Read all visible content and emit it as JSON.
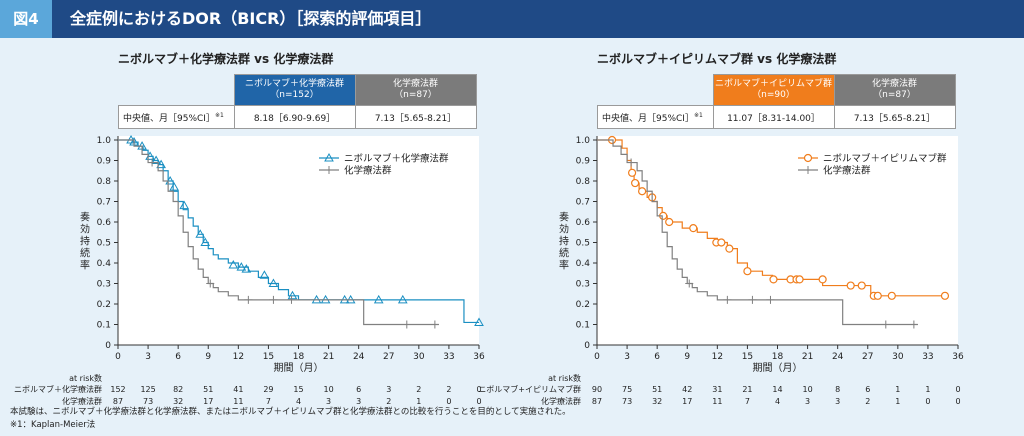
{
  "header": {
    "badge": "図4",
    "title": "全症例におけるDOR（BICR）［探索的評価項目］"
  },
  "colors": {
    "header_bg": "#1f4a86",
    "badge_bg": "#5ba7da",
    "arm_blue": "#1a8fc2",
    "arm_orange": "#f07d1c",
    "control_gray": "#808080",
    "header_gray": "#7b7b7b",
    "header_blue": "#2065a8"
  },
  "panels": [
    {
      "title": "ニボルマブ＋化学療法群 vs 化学療法群",
      "table": {
        "row_label": "中央値、月［95%CI］",
        "row_note": "※1",
        "arm_header": [
          "ニボルマブ＋化学療法群",
          "（n=152）"
        ],
        "control_header": [
          "化学療法群",
          "（n=87）"
        ],
        "arm_value": "8.18［6.90-9.69］",
        "control_value": "7.13［5.65-8.21］"
      },
      "chart_data": {
        "type": "line",
        "subtype": "kaplan-meier",
        "ylabel": "奏効持続率",
        "xlabel": "期間（月）",
        "x_ticks": [
          "0",
          "3",
          "6",
          "9",
          "12",
          "15",
          "18",
          "21",
          "24",
          "27",
          "30",
          "33",
          "36"
        ],
        "y_ticks": [
          "0",
          "0.1",
          "0.2",
          "0.3",
          "0.4",
          "0.5",
          "0.6",
          "0.7",
          "0.8",
          "0.9",
          "1.0"
        ],
        "xlim": [
          0,
          36
        ],
        "ylim": [
          0,
          1
        ],
        "legend_position": "top-right",
        "series": [
          {
            "name": "ニボルマブ＋化学療法群",
            "marker": "triangle",
            "color": "#1a8fc2",
            "steps": [
              [
                0,
                1.0
              ],
              [
                1.5,
                0.99
              ],
              [
                2.0,
                0.97
              ],
              [
                2.5,
                0.95
              ],
              [
                3.0,
                0.92
              ],
              [
                3.5,
                0.9
              ],
              [
                4.0,
                0.88
              ],
              [
                4.5,
                0.85
              ],
              [
                5.0,
                0.8
              ],
              [
                5.5,
                0.75
              ],
              [
                6.0,
                0.7
              ],
              [
                6.5,
                0.66
              ],
              [
                7.0,
                0.62
              ],
              [
                7.5,
                0.58
              ],
              [
                8.0,
                0.54
              ],
              [
                8.5,
                0.5
              ],
              [
                9.0,
                0.47
              ],
              [
                9.5,
                0.44
              ],
              [
                10.0,
                0.42
              ],
              [
                11.0,
                0.4
              ],
              [
                12.0,
                0.38
              ],
              [
                13.0,
                0.36
              ],
              [
                14.0,
                0.33
              ],
              [
                15.0,
                0.3
              ],
              [
                16.0,
                0.27
              ],
              [
                17.0,
                0.24
              ],
              [
                18.0,
                0.22
              ],
              [
                34.5,
                0.22
              ],
              [
                34.5,
                0.11
              ],
              [
                36,
                0.11
              ]
            ],
            "censors": [
              [
                1.3,
                1.0
              ],
              [
                1.6,
                0.99
              ],
              [
                2.4,
                0.97
              ],
              [
                3.2,
                0.92
              ],
              [
                3.8,
                0.9
              ],
              [
                4.3,
                0.88
              ],
              [
                5.2,
                0.8
              ],
              [
                5.6,
                0.77
              ],
              [
                6.6,
                0.68
              ],
              [
                8.2,
                0.54
              ],
              [
                8.7,
                0.5
              ],
              [
                11.5,
                0.39
              ],
              [
                12.3,
                0.38
              ],
              [
                12.8,
                0.37
              ],
              [
                14.6,
                0.34
              ],
              [
                15.5,
                0.3
              ],
              [
                17.4,
                0.24
              ],
              [
                19.8,
                0.22
              ],
              [
                20.7,
                0.22
              ],
              [
                22.6,
                0.22
              ],
              [
                23.2,
                0.22
              ],
              [
                26.0,
                0.22
              ],
              [
                28.4,
                0.22
              ],
              [
                36.0,
                0.11
              ]
            ]
          },
          {
            "name": "化学療法群",
            "marker": "plus",
            "color": "#808080",
            "steps": [
              [
                0,
                1.0
              ],
              [
                1.6,
                0.97
              ],
              [
                2.4,
                0.93
              ],
              [
                3.0,
                0.89
              ],
              [
                4.0,
                0.85
              ],
              [
                4.5,
                0.8
              ],
              [
                5.0,
                0.75
              ],
              [
                5.5,
                0.7
              ],
              [
                6.0,
                0.63
              ],
              [
                6.5,
                0.55
              ],
              [
                7.0,
                0.48
              ],
              [
                7.5,
                0.42
              ],
              [
                8.0,
                0.37
              ],
              [
                8.5,
                0.33
              ],
              [
                9.0,
                0.3
              ],
              [
                9.5,
                0.28
              ],
              [
                10.0,
                0.26
              ],
              [
                11.0,
                0.24
              ],
              [
                12.0,
                0.22
              ],
              [
                24.5,
                0.22
              ],
              [
                24.5,
                0.1
              ],
              [
                32,
                0.1
              ]
            ],
            "censors": [
              [
                3.4,
                0.89
              ],
              [
                9.2,
                0.3
              ],
              [
                13.0,
                0.22
              ],
              [
                15.5,
                0.22
              ],
              [
                17.3,
                0.22
              ],
              [
                28.8,
                0.1
              ],
              [
                31.6,
                0.1
              ]
            ]
          }
        ],
        "at_risk": {
          "label": "at risk数",
          "x": [
            0,
            3,
            6,
            9,
            12,
            15,
            18,
            21,
            24,
            27,
            30,
            33,
            36
          ],
          "rows": [
            {
              "name": "ニボルマブ＋化学療法群",
              "values": [
                "152",
                "125",
                "82",
                "51",
                "41",
                "29",
                "15",
                "10",
                "6",
                "3",
                "2",
                "2",
                "0"
              ]
            },
            {
              "name": "化学療法群",
              "values": [
                "87",
                "73",
                "32",
                "17",
                "11",
                "7",
                "4",
                "3",
                "3",
                "2",
                "1",
                "0",
                "0"
              ]
            }
          ]
        }
      }
    },
    {
      "title": "ニボルマブ＋イピリムマブ群 vs 化学療法群",
      "table": {
        "row_label": "中央値、月［95%CI］",
        "row_note": "※1",
        "arm_header": [
          "ニボルマブ＋イピリムマブ群",
          "（n=90）"
        ],
        "control_header": [
          "化学療法群",
          "（n=87）"
        ],
        "arm_value": "11.07［8.31-14.00］",
        "control_value": "7.13［5.65-8.21］"
      },
      "chart_data": {
        "type": "line",
        "subtype": "kaplan-meier",
        "ylabel": "奏効持続率",
        "xlabel": "期間（月）",
        "x_ticks": [
          "0",
          "3",
          "6",
          "9",
          "12",
          "15",
          "18",
          "21",
          "24",
          "27",
          "30",
          "33",
          "36"
        ],
        "y_ticks": [
          "0",
          "0.1",
          "0.2",
          "0.3",
          "0.4",
          "0.5",
          "0.6",
          "0.7",
          "0.8",
          "0.9",
          "1.0"
        ],
        "xlim": [
          0,
          36
        ],
        "ylim": [
          0,
          1
        ],
        "legend_position": "top-right",
        "series": [
          {
            "name": "ニボルマブ＋イピリムマブ群",
            "marker": "circle",
            "color": "#f07d1c",
            "steps": [
              [
                0,
                1.0
              ],
              [
                2.5,
                0.96
              ],
              [
                3.0,
                0.9
              ],
              [
                3.4,
                0.84
              ],
              [
                3.7,
                0.79
              ],
              [
                4.2,
                0.75
              ],
              [
                5.0,
                0.72
              ],
              [
                5.5,
                0.7
              ],
              [
                6.0,
                0.67
              ],
              [
                6.5,
                0.63
              ],
              [
                7.0,
                0.6
              ],
              [
                8.5,
                0.57
              ],
              [
                10.0,
                0.55
              ],
              [
                11.0,
                0.52
              ],
              [
                12.0,
                0.5
              ],
              [
                13.0,
                0.47
              ],
              [
                14.0,
                0.4
              ],
              [
                15.0,
                0.36
              ],
              [
                16.5,
                0.34
              ],
              [
                17.5,
                0.32
              ],
              [
                21.0,
                0.32
              ],
              [
                22.5,
                0.29
              ],
              [
                27.0,
                0.29
              ],
              [
                27.3,
                0.24
              ],
              [
                35,
                0.24
              ]
            ],
            "censors": [
              [
                1.5,
                1.0
              ],
              [
                3.5,
                0.84
              ],
              [
                3.8,
                0.79
              ],
              [
                4.5,
                0.75
              ],
              [
                5.5,
                0.72
              ],
              [
                6.6,
                0.63
              ],
              [
                7.2,
                0.6
              ],
              [
                9.6,
                0.57
              ],
              [
                11.9,
                0.5
              ],
              [
                12.4,
                0.5
              ],
              [
                13.2,
                0.47
              ],
              [
                15.0,
                0.36
              ],
              [
                17.6,
                0.32
              ],
              [
                19.3,
                0.32
              ],
              [
                19.9,
                0.32
              ],
              [
                20.2,
                0.32
              ],
              [
                22.5,
                0.32
              ],
              [
                25.3,
                0.29
              ],
              [
                26.4,
                0.29
              ],
              [
                27.6,
                0.24
              ],
              [
                28.0,
                0.24
              ],
              [
                29.4,
                0.24
              ],
              [
                34.7,
                0.24
              ]
            ]
          },
          {
            "name": "化学療法群",
            "marker": "plus",
            "color": "#808080",
            "steps": [
              [
                0,
                1.0
              ],
              [
                1.6,
                0.97
              ],
              [
                2.4,
                0.93
              ],
              [
                3.0,
                0.89
              ],
              [
                4.0,
                0.85
              ],
              [
                4.5,
                0.8
              ],
              [
                5.0,
                0.75
              ],
              [
                5.5,
                0.7
              ],
              [
                6.0,
                0.63
              ],
              [
                6.5,
                0.55
              ],
              [
                7.0,
                0.48
              ],
              [
                7.5,
                0.42
              ],
              [
                8.0,
                0.37
              ],
              [
                8.5,
                0.33
              ],
              [
                9.0,
                0.3
              ],
              [
                9.5,
                0.28
              ],
              [
                10.0,
                0.26
              ],
              [
                11.0,
                0.24
              ],
              [
                12.0,
                0.22
              ],
              [
                24.5,
                0.22
              ],
              [
                24.5,
                0.1
              ],
              [
                32,
                0.1
              ]
            ],
            "censors": [
              [
                3.4,
                0.89
              ],
              [
                9.2,
                0.3
              ],
              [
                13.0,
                0.22
              ],
              [
                15.5,
                0.22
              ],
              [
                17.3,
                0.22
              ],
              [
                28.8,
                0.1
              ],
              [
                31.6,
                0.1
              ]
            ]
          }
        ],
        "at_risk": {
          "label": "at risk数",
          "x": [
            0,
            3,
            6,
            9,
            12,
            15,
            18,
            21,
            24,
            27,
            30,
            33,
            36
          ],
          "rows": [
            {
              "name": "ニボルマブ+イピリムマブ群",
              "values": [
                "90",
                "75",
                "51",
                "42",
                "31",
                "21",
                "14",
                "10",
                "8",
                "6",
                "1",
                "1",
                "0"
              ]
            },
            {
              "name": "化学療法群",
              "values": [
                "87",
                "73",
                "32",
                "17",
                "11",
                "7",
                "4",
                "3",
                "3",
                "2",
                "1",
                "0",
                "0"
              ]
            }
          ]
        }
      }
    }
  ],
  "footnotes": [
    "本試験は、ニボルマブ＋化学療法群と化学療法群、またはニボルマブ＋イピリムマブ群と化学療法群との比較を行うことを目的として実施された。",
    "※1：Kaplan-Meier法"
  ]
}
